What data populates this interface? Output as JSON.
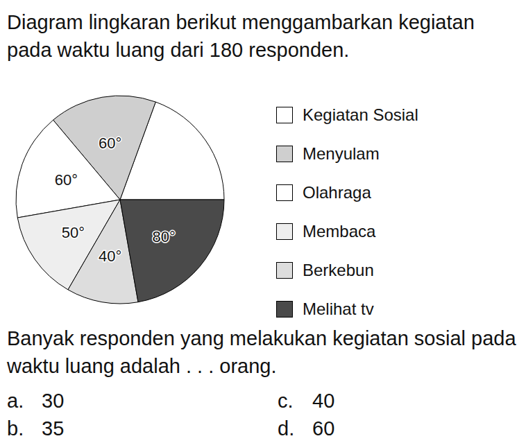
{
  "intro": "Diagram lingkaran berikut menggambarkan kegiatan pada waktu luang dari 180 responden.",
  "chart_data": {
    "type": "pie",
    "categories": [
      "Kegiatan Sosial",
      "Menyulam",
      "Olahraga",
      "Membaca",
      "Berkebun",
      "Melihat tv"
    ],
    "values": [
      70,
      60,
      60,
      50,
      40,
      80
    ],
    "value_labels": [
      null,
      "60°",
      "60°",
      "50°",
      "40°",
      "80°"
    ],
    "colors": [
      "#ffffff",
      "#cfcfcf",
      "#ffffff",
      "#eeeeee",
      "#dddddd",
      "#4a4a4a"
    ],
    "data_labels": true,
    "legend": "right"
  },
  "question": "Banyak responden yang melakukan kegiatan sosial pada waktu luang adalah . . . orang.",
  "options": [
    {
      "letter": "a.",
      "text": "30"
    },
    {
      "letter": "b.",
      "text": "35"
    },
    {
      "letter": "c.",
      "text": "40"
    },
    {
      "letter": "d.",
      "text": "60"
    }
  ]
}
